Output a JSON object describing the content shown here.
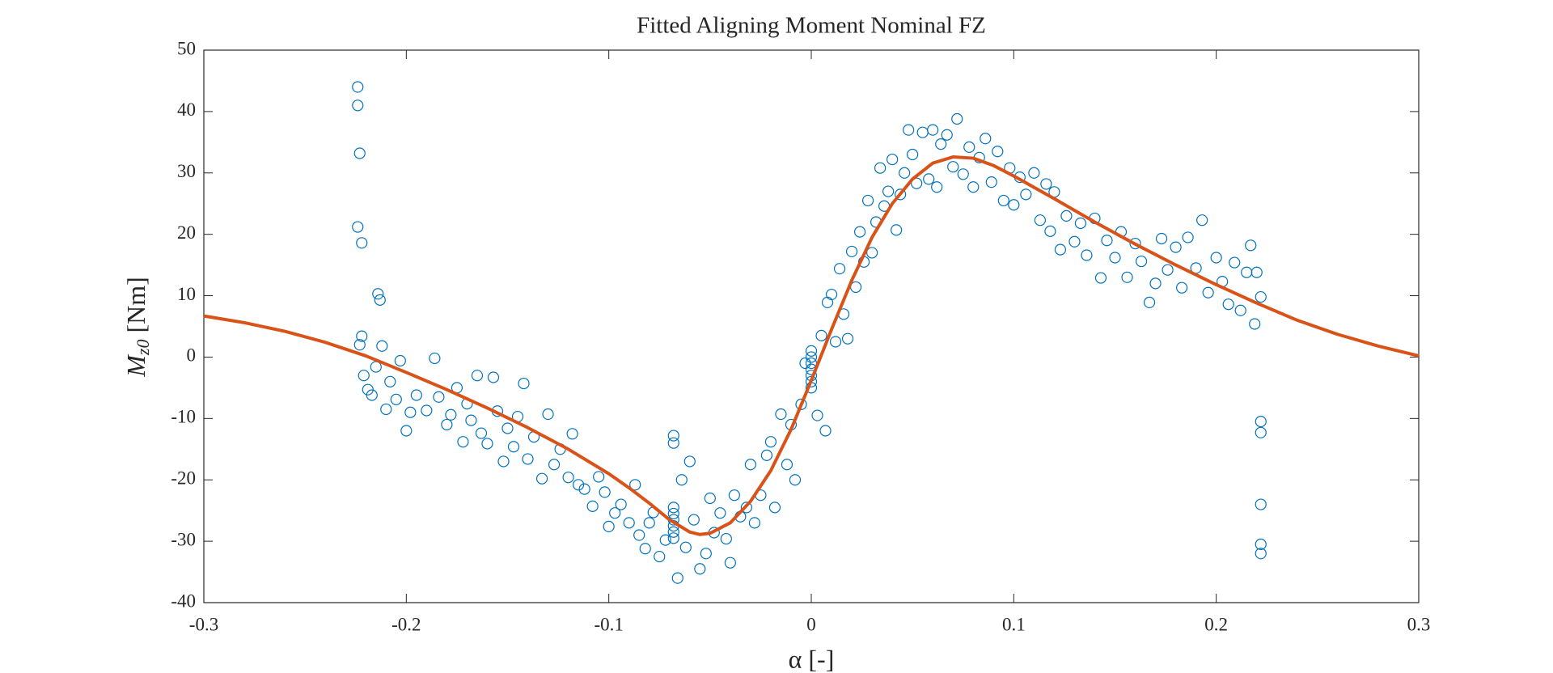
{
  "chart_data": {
    "type": "scatter",
    "title": "Fitted Aligning Moment Nominal FZ",
    "xlabel": "α [-]",
    "ylabel": [
      "M",
      "z0",
      "[Nm]"
    ],
    "xlim": [
      -0.3,
      0.3
    ],
    "xticks": [
      -0.3,
      -0.2,
      -0.1,
      0,
      0.1,
      0.2,
      0.3
    ],
    "ylim": [
      -40,
      50
    ],
    "yticks": [
      -40,
      -30,
      -20,
      -10,
      0,
      10,
      20,
      30,
      40,
      50
    ],
    "box": true,
    "series": [
      {
        "style": "markers",
        "color": "#0072BD",
        "x": [
          -0.224,
          -0.224,
          -0.223,
          -0.224,
          -0.222,
          -0.214,
          -0.213,
          -0.222,
          -0.223,
          -0.221,
          -0.219,
          -0.217,
          -0.215,
          -0.212,
          -0.21,
          -0.208,
          -0.205,
          -0.203,
          -0.2,
          -0.198,
          -0.195,
          -0.19,
          -0.186,
          -0.184,
          -0.18,
          -0.178,
          -0.175,
          -0.172,
          -0.17,
          -0.168,
          -0.165,
          -0.163,
          -0.16,
          -0.157,
          -0.155,
          -0.152,
          -0.15,
          -0.147,
          -0.145,
          -0.142,
          -0.14,
          -0.137,
          -0.133,
          -0.13,
          -0.127,
          -0.124,
          -0.12,
          -0.118,
          -0.115,
          -0.112,
          -0.108,
          -0.105,
          -0.102,
          -0.1,
          -0.097,
          -0.094,
          -0.09,
          -0.087,
          -0.085,
          -0.082,
          -0.08,
          -0.078,
          -0.075,
          -0.072,
          -0.068,
          -0.068,
          -0.068,
          -0.068,
          -0.068,
          -0.068,
          -0.068,
          -0.068,
          -0.066,
          -0.064,
          -0.062,
          -0.06,
          -0.058,
          -0.055,
          -0.052,
          -0.05,
          -0.048,
          -0.045,
          -0.042,
          -0.04,
          -0.038,
          -0.035,
          -0.032,
          -0.03,
          -0.028,
          -0.025,
          -0.022,
          -0.02,
          -0.018,
          -0.015,
          -0.012,
          -0.01,
          -0.008,
          -0.005,
          -0.003,
          0,
          0,
          0,
          0,
          0,
          0,
          0,
          0.003,
          0.005,
          0.007,
          0.008,
          0.01,
          0.012,
          0.014,
          0.016,
          0.018,
          0.02,
          0.022,
          0.024,
          0.026,
          0.028,
          0.03,
          0.032,
          0.034,
          0.036,
          0.038,
          0.04,
          0.042,
          0.044,
          0.046,
          0.048,
          0.05,
          0.052,
          0.055,
          0.058,
          0.06,
          0.062,
          0.064,
          0.067,
          0.07,
          0.072,
          0.075,
          0.078,
          0.08,
          0.083,
          0.086,
          0.089,
          0.092,
          0.095,
          0.098,
          0.1,
          0.103,
          0.106,
          0.11,
          0.113,
          0.116,
          0.118,
          0.12,
          0.123,
          0.126,
          0.13,
          0.133,
          0.136,
          0.14,
          0.143,
          0.146,
          0.15,
          0.153,
          0.156,
          0.16,
          0.163,
          0.167,
          0.17,
          0.173,
          0.176,
          0.18,
          0.183,
          0.186,
          0.19,
          0.193,
          0.196,
          0.2,
          0.203,
          0.206,
          0.209,
          0.212,
          0.215,
          0.217,
          0.219,
          0.22,
          0.222,
          0.222,
          0.222,
          0.222,
          0.222,
          0.222
        ],
        "values": [
          44,
          41,
          33.2,
          21.2,
          18.6,
          10.3,
          9.3,
          3.4,
          2,
          -3,
          -5.3,
          -6.2,
          -1.6,
          1.8,
          -8.5,
          -4,
          -6.9,
          -0.6,
          -12,
          -9,
          -6.2,
          -8.7,
          -0.2,
          -6.5,
          -11,
          -9.4,
          -5,
          -13.8,
          -7.6,
          -10.3,
          -3,
          -12.4,
          -14.1,
          -3.3,
          -8.8,
          -17,
          -11.6,
          -14.6,
          -9.7,
          -4.3,
          -16.6,
          -13,
          -19.8,
          -9.3,
          -17.5,
          -15,
          -19.6,
          -12.5,
          -20.8,
          -21.5,
          -24.3,
          -19.5,
          -22,
          -27.6,
          -25.4,
          -24,
          -27,
          -20.8,
          -29,
          -31.2,
          -27,
          -25.3,
          -32.5,
          -29.8,
          -24.5,
          -25.5,
          -26.5,
          -27.5,
          -28.5,
          -29.5,
          -12.8,
          -14,
          -36,
          -20,
          -31,
          -17,
          -26.5,
          -34.5,
          -32,
          -23,
          -28.6,
          -25.4,
          -29.6,
          -33.5,
          -22.5,
          -26,
          -24.5,
          -17.5,
          -27,
          -22.5,
          -16,
          -13.8,
          -24.5,
          -9.3,
          -17.5,
          -11,
          -20,
          -7.7,
          -1,
          1,
          0,
          -1,
          -2,
          -3,
          -4,
          -5,
          -9.5,
          3.5,
          -12,
          8.9,
          10.2,
          2.5,
          14.4,
          7,
          3,
          17.2,
          11.4,
          20.4,
          15.5,
          25.5,
          17,
          22,
          30.8,
          24.6,
          27,
          32.2,
          20.7,
          26.5,
          30,
          37,
          33,
          28.3,
          36.6,
          29,
          37,
          27.7,
          34.7,
          36.2,
          31,
          38.8,
          29.8,
          34.2,
          27.7,
          32.5,
          35.6,
          28.5,
          33.5,
          25.5,
          30.8,
          24.8,
          29.3,
          26.5,
          30,
          22.3,
          28.2,
          20.5,
          26.9,
          17.5,
          23,
          18.8,
          21.8,
          16.6,
          22.6,
          12.9,
          19,
          16.2,
          20.4,
          13,
          18.5,
          15.6,
          8.9,
          12,
          19.3,
          14.2,
          17.9,
          11.3,
          19.5,
          14.5,
          22.3,
          10.5,
          16.2,
          12.3,
          8.6,
          15.4,
          7.6,
          13.8,
          18.2,
          5.4,
          13.8,
          9.8,
          -10.5,
          -12.3,
          -24,
          -30.5,
          -32
        ]
      },
      {
        "style": "line",
        "color": "#D95319",
        "x": [
          -0.3,
          -0.28,
          -0.26,
          -0.24,
          -0.22,
          -0.2,
          -0.18,
          -0.16,
          -0.14,
          -0.12,
          -0.1,
          -0.09,
          -0.08,
          -0.07,
          -0.06,
          -0.055,
          -0.05,
          -0.04,
          -0.03,
          -0.02,
          -0.01,
          0,
          0.01,
          0.02,
          0.03,
          0.04,
          0.05,
          0.06,
          0.07,
          0.08,
          0.09,
          0.1,
          0.12,
          0.14,
          0.16,
          0.18,
          0.2,
          0.22,
          0.24,
          0.26,
          0.28,
          0.3
        ],
        "values": [
          6.7,
          5.6,
          4.2,
          2.4,
          0.2,
          -2.5,
          -5.3,
          -8.3,
          -11.5,
          -15,
          -19,
          -21.3,
          -23.8,
          -26.5,
          -28.5,
          -28.9,
          -28.7,
          -27,
          -23.5,
          -18.5,
          -11.8,
          -3.8,
          4.5,
          12.5,
          19.5,
          25,
          29,
          31.6,
          32.6,
          32.4,
          31.2,
          29.5,
          25.8,
          22,
          18.4,
          15,
          11.8,
          8.8,
          6,
          3.7,
          1.8,
          0.2
        ]
      }
    ]
  }
}
